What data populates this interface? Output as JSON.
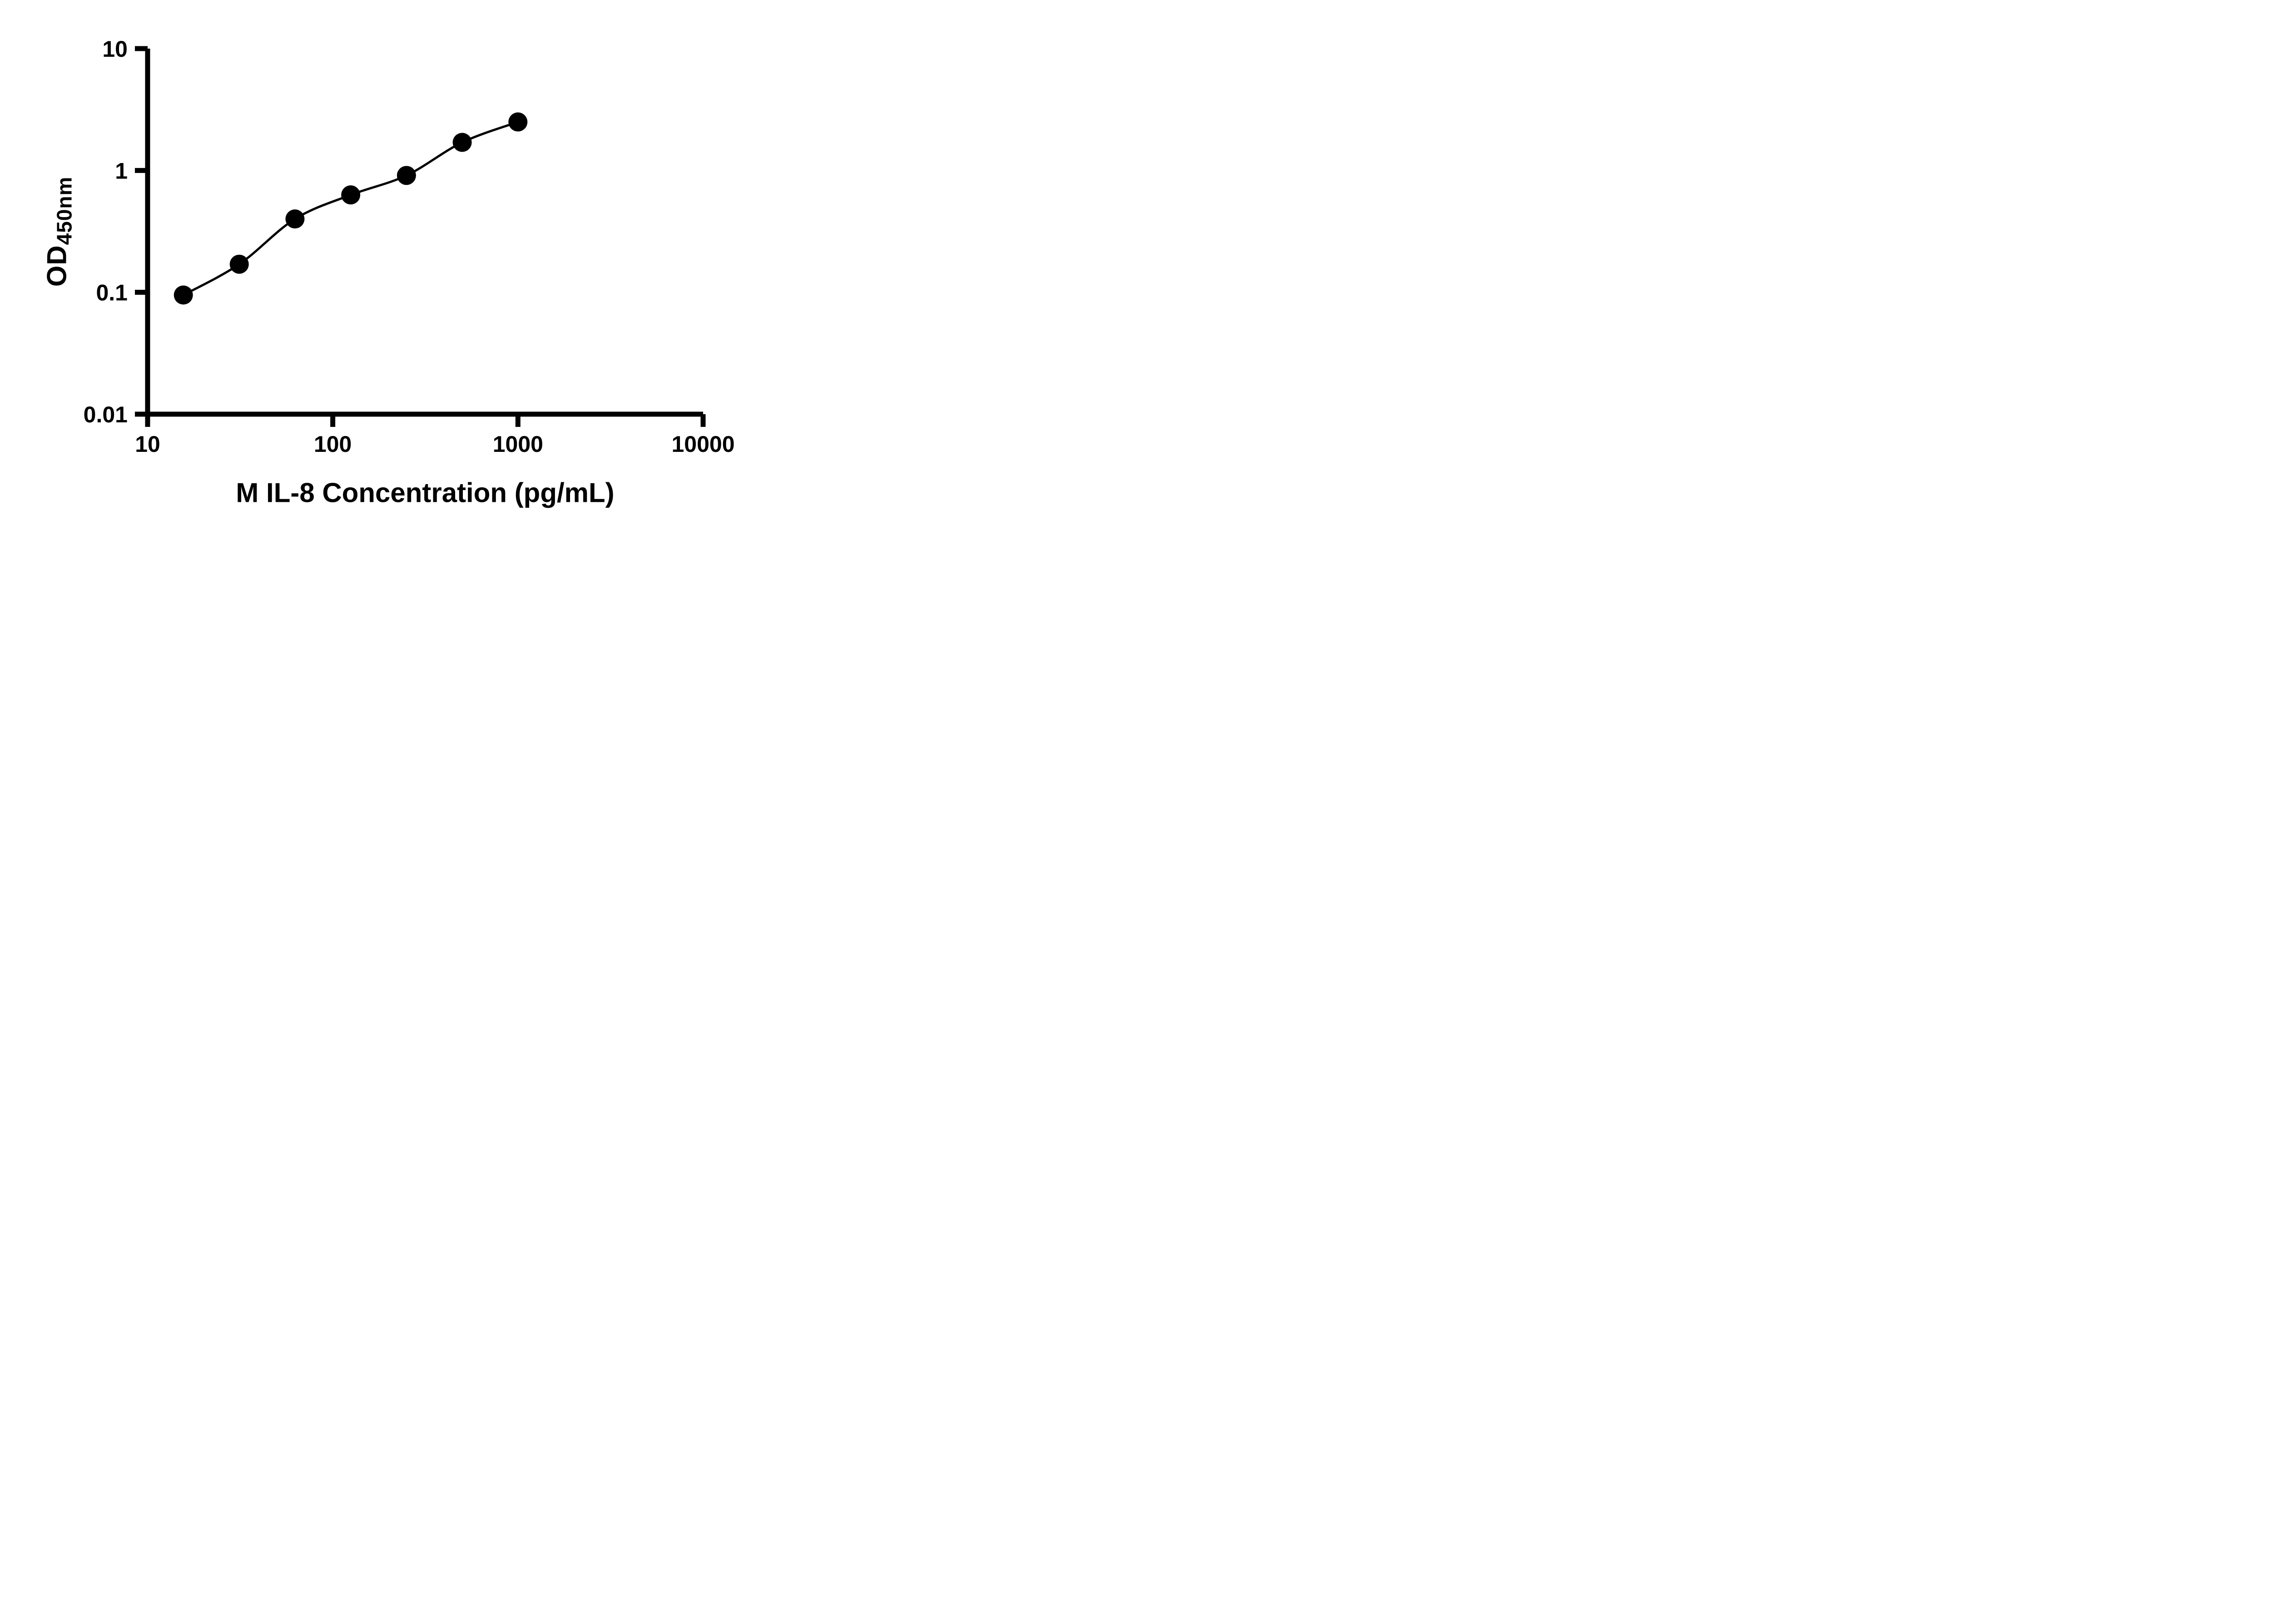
{
  "chart_data": {
    "type": "scatter",
    "title": "",
    "xlabel": "M IL-8 Concentration (pg/mL)",
    "ylabel_base": "OD",
    "ylabel_sub": "450nm",
    "x_scale": "log",
    "y_scale": "log",
    "xlim": [
      10,
      10000
    ],
    "ylim": [
      0.01,
      10
    ],
    "x_ticks": [
      10,
      100,
      1000,
      10000
    ],
    "x_tick_labels": [
      "10",
      "100",
      "1000",
      "10000"
    ],
    "y_ticks": [
      0.01,
      0.1,
      1,
      10
    ],
    "y_tick_labels": [
      "0.01",
      "0.1",
      "1",
      "10"
    ],
    "x": [
      15.6,
      31.25,
      62.5,
      125,
      250,
      500,
      1000
    ],
    "y": [
      0.095,
      0.17,
      0.4,
      0.63,
      0.91,
      1.7,
      2.5
    ],
    "fit_curve": true,
    "grid": false,
    "legend": false,
    "marker_color": "#000000",
    "line_color": "#000000",
    "background_color": "#ffffff"
  }
}
